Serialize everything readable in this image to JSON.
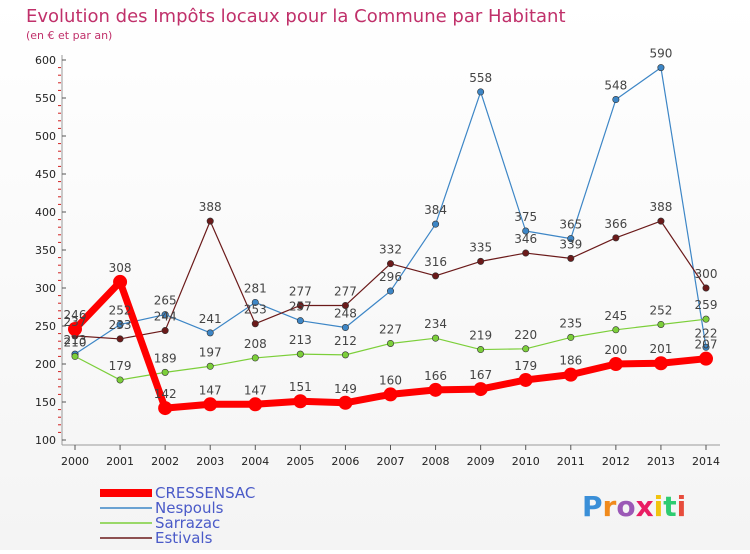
{
  "chart_data": {
    "type": "line",
    "title": "Evolution des Impôts locaux pour la Commune par Habitant",
    "subtitle": "(en € et par an)",
    "x": [
      "2000",
      "2001",
      "2002",
      "2003",
      "2004",
      "2005",
      "2006",
      "2007",
      "2008",
      "2009",
      "2010",
      "2011",
      "2012",
      "2013",
      "2014"
    ],
    "ylim": [
      100,
      600
    ],
    "yticks": [
      "100",
      "150",
      "200",
      "250",
      "300",
      "350",
      "400",
      "450",
      "500",
      "550",
      "600"
    ],
    "grid": false,
    "legend_position": "bottom-left",
    "series": [
      {
        "name": "CRESSENSAC",
        "color": "#ff0000",
        "values": [
          246,
          308,
          142,
          147,
          147,
          151,
          149,
          160,
          166,
          167,
          179,
          186,
          200,
          201,
          207
        ],
        "labels": [
          "246",
          "308",
          "142",
          "147",
          "147",
          "151",
          "149",
          "160",
          "166",
          "167",
          "179",
          "186",
          "200",
          "201",
          "207"
        ]
      },
      {
        "name": "Nespouls",
        "color": "#3d86c6",
        "values": [
          213,
          252,
          265,
          241,
          281,
          257,
          248,
          296,
          384,
          558,
          375,
          365,
          548,
          590,
          222
        ],
        "labels": [
          "213",
          "252",
          "265",
          "241",
          "281",
          "257",
          "248",
          "296",
          "384",
          "558",
          "375",
          "365",
          "548",
          "590",
          "222"
        ]
      },
      {
        "name": "Sarrazac",
        "color": "#7ccf3a",
        "values": [
          210,
          179,
          189,
          197,
          208,
          213,
          212,
          227,
          234,
          219,
          220,
          235,
          245,
          252,
          259
        ],
        "labels": [
          "210",
          "179",
          "189",
          "197",
          "208",
          "213",
          "212",
          "227",
          "234",
          "219",
          "220",
          "235",
          "245",
          "252",
          "259"
        ]
      },
      {
        "name": "Estivals",
        "color": "#6b1a1a",
        "values": [
          237,
          233,
          244,
          388,
          253,
          277,
          277,
          332,
          316,
          335,
          346,
          339,
          366,
          388,
          300
        ],
        "labels": [
          "237",
          "233",
          "244",
          "388",
          "253",
          "277",
          "277",
          "332",
          "316",
          "335",
          "346",
          "339",
          "366",
          "388",
          "300"
        ]
      }
    ]
  },
  "logo": {
    "text": "Proxiti",
    "colors": [
      "#3a8fd8",
      "#f08a1c",
      "#9b59b6",
      "#e91e63",
      "#f1c40f",
      "#2ecc71",
      "#e74c3c"
    ]
  }
}
